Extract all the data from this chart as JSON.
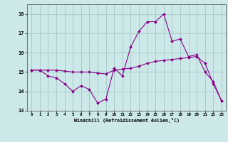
{
  "xlabel": "Windchill (Refroidissement éolien,°C)",
  "background_color": "#cce8e8",
  "line_color": "#880088",
  "grid_color": "#aacccc",
  "x_ticks": [
    0,
    1,
    2,
    3,
    4,
    5,
    6,
    7,
    8,
    9,
    10,
    11,
    12,
    13,
    14,
    15,
    16,
    17,
    18,
    19,
    20,
    21,
    22,
    23
  ],
  "ylim": [
    13.0,
    18.5
  ],
  "y_ticks": [
    13,
    14,
    15,
    16,
    17,
    18
  ],
  "line1_x": [
    0,
    1,
    2,
    3,
    4,
    5,
    6,
    7,
    8,
    9,
    10,
    11,
    12,
    13,
    14,
    15,
    16,
    17,
    18,
    19,
    20,
    21,
    22,
    23
  ],
  "line1_y": [
    15.1,
    15.1,
    14.8,
    14.7,
    14.4,
    14.0,
    14.3,
    14.1,
    13.4,
    13.6,
    15.2,
    14.8,
    16.3,
    17.1,
    17.6,
    17.6,
    18.0,
    16.6,
    16.7,
    15.8,
    15.9,
    15.0,
    14.5,
    13.5
  ],
  "line2_x": [
    0,
    1,
    2,
    3,
    4,
    5,
    6,
    7,
    8,
    9,
    10,
    11,
    12,
    13,
    14,
    15,
    16,
    17,
    18,
    19,
    20,
    21,
    22,
    23
  ],
  "line2_y": [
    15.1,
    15.1,
    15.1,
    15.1,
    15.05,
    15.0,
    15.0,
    15.0,
    14.95,
    14.9,
    15.1,
    15.15,
    15.2,
    15.3,
    15.45,
    15.55,
    15.6,
    15.65,
    15.7,
    15.75,
    15.8,
    15.45,
    14.4,
    13.5
  ]
}
